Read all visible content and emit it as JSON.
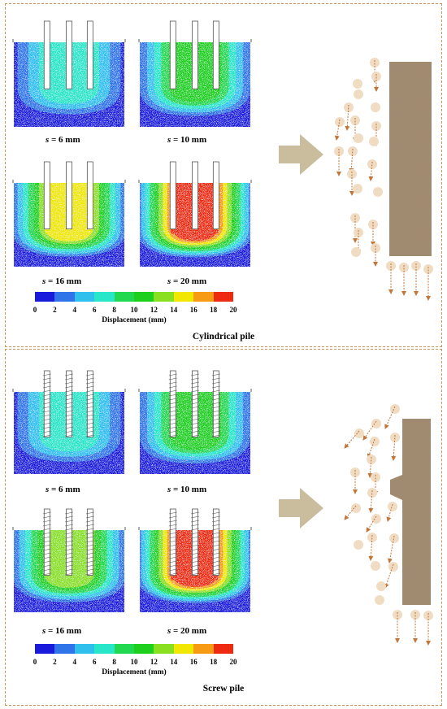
{
  "panels": [
    {
      "caption": "Cylindrical pile",
      "pile_type": "cylindrical",
      "snapshots": [
        {
          "s_var": "s",
          "s_value": "= 6 mm",
          "max_displacement_mm": 8
        },
        {
          "s_var": "s",
          "s_value": "= 10 mm",
          "max_displacement_mm": 11
        },
        {
          "s_var": "s",
          "s_value": "= 16 mm",
          "max_displacement_mm": 16
        },
        {
          "s_var": "s",
          "s_value": "= 20 mm",
          "max_displacement_mm": 20
        }
      ]
    },
    {
      "caption": "Screw pile",
      "pile_type": "screw",
      "snapshots": [
        {
          "s_var": "s",
          "s_value": "= 6 mm",
          "max_displacement_mm": 7
        },
        {
          "s_var": "s",
          "s_value": "= 10 mm",
          "max_displacement_mm": 11
        },
        {
          "s_var": "s",
          "s_value": "= 16 mm",
          "max_displacement_mm": 14
        },
        {
          "s_var": "s",
          "s_value": "= 20 mm",
          "max_displacement_mm": 20
        }
      ]
    }
  ],
  "colorbar": {
    "title": "Displacement (mm)",
    "ticks": [
      "0",
      "2",
      "4",
      "6",
      "8",
      "10",
      "12",
      "14",
      "16",
      "18",
      "20"
    ],
    "colors": [
      "#1a1adc",
      "#2f74e8",
      "#2fc0ee",
      "#28e6c8",
      "#22d850",
      "#1ed01e",
      "#8ae020",
      "#f0e800",
      "#f79a14",
      "#ee2a10"
    ]
  },
  "colors": {
    "frame": "#c8955c",
    "arrow": "#c9bd9e",
    "pile": "#a08a70",
    "particle": "#f0dcc2",
    "particle_arrow": "#c2763a"
  }
}
